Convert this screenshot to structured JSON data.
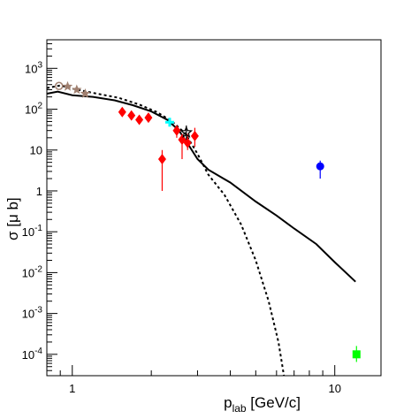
{
  "chart_data": {
    "type": "scatter",
    "xlabel_main": "p",
    "xlabel_sub": "lab",
    "xlabel_unit": " [GeV/c]",
    "ylabel": "σ [μ b]",
    "x_scale": "log",
    "y_scale": "log",
    "xlim": [
      0.8,
      15
    ],
    "ylim": [
      3e-05,
      5000
    ],
    "x_ticks": [
      {
        "value": 1,
        "label": "1"
      },
      {
        "value": 10,
        "label": "10"
      }
    ],
    "y_ticks": [
      {
        "value": 1000,
        "base": "10",
        "exp": "3"
      },
      {
        "value": 100,
        "base": "10",
        "exp": "2"
      },
      {
        "value": 10,
        "base": "10",
        "exp": ""
      },
      {
        "value": 1,
        "base": "1",
        "exp": ""
      },
      {
        "value": 0.1,
        "base": "10",
        "exp": "-1"
      },
      {
        "value": 0.01,
        "base": "10",
        "exp": "-2"
      },
      {
        "value": 0.001,
        "base": "10",
        "exp": "-3"
      },
      {
        "value": 0.0001,
        "base": "10",
        "exp": "-4"
      }
    ],
    "series": [
      {
        "kind": "line",
        "style": "solid",
        "color": "#000000",
        "points": [
          [
            0.8,
            240
          ],
          [
            0.88,
            270
          ],
          [
            1.0,
            220
          ],
          [
            1.2,
            200
          ],
          [
            1.45,
            165
          ],
          [
            1.7,
            125
          ],
          [
            2.0,
            88
          ],
          [
            2.3,
            55
          ],
          [
            2.55,
            30
          ],
          [
            2.8,
            12
          ],
          [
            3.0,
            6
          ],
          [
            3.3,
            3.3
          ],
          [
            4.0,
            1.6
          ],
          [
            5.0,
            0.55
          ],
          [
            6.0,
            0.25
          ],
          [
            7.0,
            0.12
          ],
          [
            8.5,
            0.05
          ],
          [
            10.0,
            0.018
          ],
          [
            12.0,
            0.006
          ]
        ]
      },
      {
        "kind": "line",
        "style": "dashed",
        "color": "#000000",
        "points": [
          [
            0.8,
            330
          ],
          [
            0.9,
            380
          ],
          [
            1.0,
            320
          ],
          [
            1.2,
            250
          ],
          [
            1.5,
            190
          ],
          [
            1.8,
            130
          ],
          [
            2.1,
            85
          ],
          [
            2.4,
            50
          ],
          [
            2.7,
            25
          ],
          [
            3.0,
            8
          ],
          [
            3.3,
            2.5
          ],
          [
            3.8,
            0.8
          ],
          [
            4.4,
            0.15
          ],
          [
            5.0,
            0.02
          ],
          [
            5.6,
            0.002
          ],
          [
            6.1,
            0.0002
          ],
          [
            6.4,
            3e-05
          ]
        ]
      },
      {
        "kind": "markers",
        "marker": "diamond",
        "color": "#ff0000",
        "points": [
          {
            "x": 1.55,
            "y": 85,
            "ylo": 70,
            "yhi": 100
          },
          {
            "x": 1.68,
            "y": 70,
            "ylo": 58,
            "yhi": 85
          },
          {
            "x": 1.8,
            "y": 55,
            "ylo": 45,
            "yhi": 68
          },
          {
            "x": 1.95,
            "y": 62,
            "ylo": 50,
            "yhi": 75
          },
          {
            "x": 2.2,
            "y": 6,
            "ylo": 1,
            "yhi": 10
          },
          {
            "x": 2.5,
            "y": 30,
            "ylo": 20,
            "yhi": 40
          },
          {
            "x": 2.62,
            "y": 18,
            "ylo": 6,
            "yhi": 25
          },
          {
            "x": 2.75,
            "y": 15,
            "ylo": 10,
            "yhi": 25
          },
          {
            "x": 2.93,
            "y": 22,
            "ylo": 12,
            "yhi": 35
          }
        ]
      },
      {
        "kind": "markers",
        "marker": "cross",
        "color": "#00ffff",
        "points": [
          {
            "x": 2.35,
            "y": 48,
            "ylo": 40,
            "yhi": 58
          }
        ]
      },
      {
        "kind": "markers",
        "marker": "open-star",
        "color": "#000000",
        "points": [
          {
            "x": 2.72,
            "y": 27,
            "ylo": 18,
            "yhi": 40
          }
        ]
      },
      {
        "kind": "markers",
        "marker": "open-circle",
        "color": "#a08070",
        "points": [
          {
            "x": 0.89,
            "y": 370
          }
        ]
      },
      {
        "kind": "markers",
        "marker": "star",
        "color": "#a08070",
        "points": [
          {
            "x": 0.96,
            "y": 360
          },
          {
            "x": 1.04,
            "y": 300
          },
          {
            "x": 1.12,
            "y": 240
          }
        ]
      },
      {
        "kind": "markers",
        "marker": "circle",
        "color": "#0000ff",
        "points": [
          {
            "x": 8.8,
            "y": 4,
            "ylo": 2,
            "yhi": 5.5
          }
        ]
      },
      {
        "kind": "markers",
        "marker": "square",
        "color": "#00ff00",
        "points": [
          {
            "x": 12.1,
            "y": 0.0001,
            "ylo": 6.5e-05,
            "yhi": 0.00016
          }
        ]
      }
    ]
  }
}
